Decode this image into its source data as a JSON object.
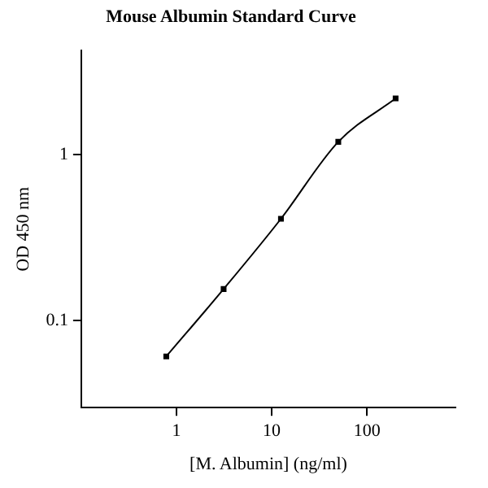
{
  "chart_data": {
    "type": "line",
    "title": "Mouse Albumin Standard Curve",
    "xlabel": "[M. Albumin] (ng/ml)",
    "ylabel": "OD 450 nm",
    "log": "xy",
    "xlim": [
      0.1,
      850
    ],
    "xticks": [
      1,
      10,
      100
    ],
    "ylim": [
      0.03,
      4.2
    ],
    "yticks": [
      0.1,
      1
    ],
    "grid": false,
    "legend": false,
    "marker": "square",
    "line_style": "solid",
    "series": [
      {
        "color": "#000000",
        "x": [
          0.78125,
          3.125,
          12.5,
          50,
          200
        ],
        "values": [
          0.061,
          0.155,
          0.41,
          1.19,
          2.17
        ]
      }
    ]
  }
}
